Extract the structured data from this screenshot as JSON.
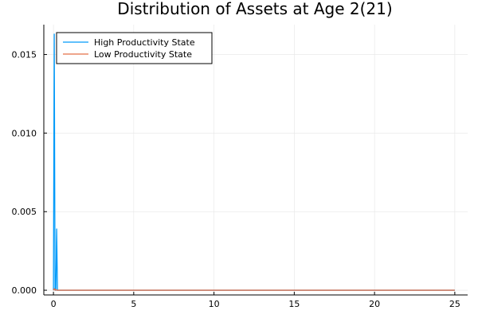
{
  "chart_data": {
    "type": "line",
    "title": "Distribution of Assets at Age 2(21)",
    "xlabel": "",
    "ylabel": "",
    "xlim": [
      -0.6,
      25.8
    ],
    "ylim": [
      -0.0003,
      0.0169
    ],
    "xticks": [
      0,
      5,
      10,
      15,
      20,
      25
    ],
    "xtick_labels": [
      "0",
      "5",
      "10",
      "15",
      "20",
      "25"
    ],
    "yticks": [
      0.0,
      0.005,
      0.01,
      0.015
    ],
    "ytick_labels": [
      "0.000",
      "0.005",
      "0.010",
      "0.015"
    ],
    "grid": true,
    "legend_position": "top-left",
    "series": [
      {
        "name": "High Productivity State",
        "color": "#009AFA",
        "x": [
          0.0,
          0.05,
          0.1,
          0.15,
          0.2,
          0.25,
          0.3,
          1,
          5,
          10,
          15,
          20,
          25
        ],
        "y": [
          0.0,
          0.0163,
          0.0,
          0.0,
          0.0039,
          0.0,
          0.0,
          0.0,
          0.0,
          0.0,
          0.0,
          0.0,
          0.0
        ]
      },
      {
        "name": "Low Productivity State",
        "color": "#E36F47",
        "x": [
          0.0,
          0.05,
          0.1,
          0.15,
          0.2,
          1,
          5,
          10,
          15,
          20,
          25
        ],
        "y": [
          0.0,
          0.0001,
          0.0,
          5e-05,
          0.0,
          0.0,
          0.0,
          0.0,
          0.0,
          0.0,
          0.0
        ]
      }
    ]
  }
}
